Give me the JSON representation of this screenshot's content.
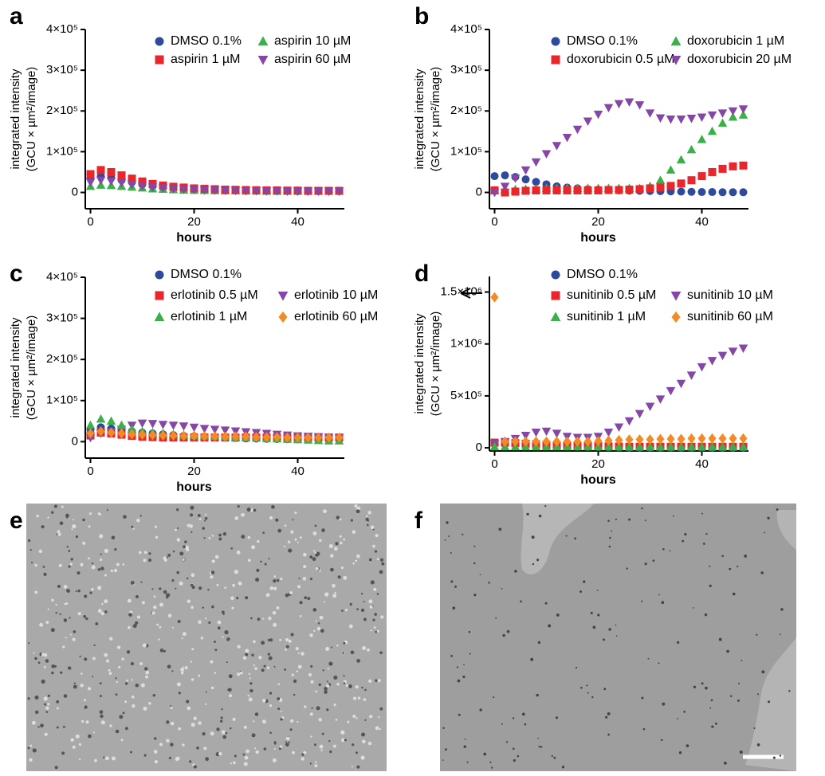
{
  "chart_data": [
    {
      "type": "scatter",
      "panel_label": "a",
      "ylabel": [
        "integrated intensity",
        "(GCU × µm²/image)"
      ],
      "xlabel": "hours",
      "x": [
        0,
        2,
        4,
        6,
        8,
        10,
        12,
        14,
        16,
        18,
        20,
        22,
        24,
        26,
        28,
        30,
        32,
        34,
        36,
        38,
        40,
        42,
        44,
        46,
        48
      ],
      "xlim": [
        -1,
        49
      ],
      "xticks": [
        0,
        20,
        40
      ],
      "ylim": [
        -40000,
        400000
      ],
      "yticks": [
        0,
        {
          "value": 100000,
          "label": "1×10⁵"
        },
        {
          "value": 200000,
          "label": "2×10⁵"
        },
        {
          "value": 300000,
          "label": "3×10⁵"
        },
        {
          "value": 400000,
          "label": "4×10⁵"
        }
      ],
      "series": [
        {
          "name": "DMSO 0.1%",
          "color": "#2e4b9b",
          "marker": "circle",
          "values": [
            35000,
            40000,
            36000,
            30000,
            25000,
            20000,
            16000,
            13000,
            11000,
            9000,
            8000,
            7000,
            6000,
            5500,
            5000,
            4500,
            4000,
            4000,
            3500,
            3500,
            3000,
            3000,
            3000,
            3000,
            3000
          ]
        },
        {
          "name": "aspirin 10 µM",
          "color": "#3bb04a",
          "marker": "triangle",
          "values": [
            15000,
            18000,
            17000,
            15000,
            13000,
            11000,
            9000,
            8000,
            7000,
            6000,
            5500,
            5000,
            4500,
            4000,
            4000,
            3500,
            3500,
            3000,
            3000,
            3000,
            3000,
            3000,
            3000,
            3000,
            3000
          ]
        },
        {
          "name": "aspirin 1 µM",
          "color": "#e8262b",
          "marker": "square",
          "values": [
            45000,
            55000,
            50000,
            42000,
            34000,
            27000,
            21000,
            17000,
            14000,
            12000,
            10000,
            9000,
            8000,
            7000,
            6500,
            6000,
            5500,
            5000,
            5000,
            4500,
            4500,
            4000,
            4000,
            4000,
            4000
          ]
        },
        {
          "name": "aspirin 60 µM",
          "color": "#8447a6",
          "marker": "triangle-down",
          "values": [
            25000,
            30000,
            28000,
            24000,
            20000,
            16000,
            13000,
            11000,
            9000,
            8000,
            7000,
            6000,
            5500,
            5000,
            4500,
            4000,
            4000,
            3500,
            3500,
            3000,
            3000,
            3000,
            3000,
            3000,
            3000
          ]
        }
      ]
    },
    {
      "type": "scatter",
      "panel_label": "b",
      "ylabel": [
        "integrated intensity",
        "(GCU × µm²/image)"
      ],
      "xlabel": "hours",
      "x": [
        0,
        2,
        4,
        6,
        8,
        10,
        12,
        14,
        16,
        18,
        20,
        22,
        24,
        26,
        28,
        30,
        32,
        34,
        36,
        38,
        40,
        42,
        44,
        46,
        48
      ],
      "xlim": [
        -1,
        49
      ],
      "xticks": [
        0,
        20,
        40
      ],
      "ylim": [
        -40000,
        400000
      ],
      "yticks": [
        0,
        {
          "value": 100000,
          "label": "1×10⁵"
        },
        {
          "value": 200000,
          "label": "2×10⁵"
        },
        {
          "value": 300000,
          "label": "3×10⁵"
        },
        {
          "value": 400000,
          "label": "4×10⁵"
        }
      ],
      "series": [
        {
          "name": "DMSO 0.1%",
          "color": "#2e4b9b",
          "marker": "circle",
          "values": [
            40000,
            42000,
            38000,
            32000,
            26000,
            20000,
            15000,
            12000,
            10000,
            8000,
            7000,
            6000,
            5000,
            4500,
            4000,
            3500,
            3000,
            2500,
            2000,
            1500,
            1000,
            1000,
            500,
            500,
            500
          ]
        },
        {
          "name": "doxorubicin 1 µM",
          "color": "#3bb04a",
          "marker": "triangle",
          "values": [
            5000,
            6000,
            7000,
            8000,
            9000,
            10000,
            10000,
            10000,
            10000,
            10000,
            10000,
            10000,
            10000,
            10000,
            10000,
            15000,
            30000,
            55000,
            80000,
            105000,
            130000,
            150000,
            170000,
            185000,
            190000
          ]
        },
        {
          "name": "doxorubicin 0.5 µM",
          "color": "#e8262b",
          "marker": "square",
          "values": [
            5000,
            0,
            2000,
            4000,
            5000,
            5000,
            5000,
            5000,
            5000,
            5000,
            5000,
            6000,
            6000,
            7000,
            8000,
            10000,
            12000,
            16000,
            22000,
            30000,
            40000,
            50000,
            58000,
            64000,
            66000
          ]
        },
        {
          "name": "doxorubicin 20 µM",
          "color": "#8447a6",
          "marker": "triangle-down",
          "values": [
            0,
            15000,
            35000,
            55000,
            75000,
            95000,
            115000,
            135000,
            155000,
            175000,
            192000,
            208000,
            218000,
            222000,
            215000,
            195000,
            183000,
            180000,
            180000,
            182000,
            185000,
            190000,
            195000,
            200000,
            205000
          ]
        }
      ]
    },
    {
      "type": "scatter",
      "panel_label": "c",
      "ylabel": [
        "integrated intensity",
        "(GCU × µm²/image)"
      ],
      "xlabel": "hours",
      "x": [
        0,
        2,
        4,
        6,
        8,
        10,
        12,
        14,
        16,
        18,
        20,
        22,
        24,
        26,
        28,
        30,
        32,
        34,
        36,
        38,
        40,
        42,
        44,
        46,
        48
      ],
      "xlim": [
        -1,
        49
      ],
      "xticks": [
        0,
        20,
        40
      ],
      "ylim": [
        -40000,
        400000
      ],
      "yticks": [
        0,
        {
          "value": 100000,
          "label": "1×10⁵"
        },
        {
          "value": 200000,
          "label": "2×10⁵"
        },
        {
          "value": 300000,
          "label": "3×10⁵"
        },
        {
          "value": 400000,
          "label": "4×10⁵"
        }
      ],
      "series": [
        {
          "name": "DMSO 0.1%",
          "color": "#2e4b9b",
          "marker": "circle",
          "values": [
            30000,
            35000,
            32000,
            28000,
            25000,
            22000,
            20000,
            18000,
            16000,
            14000,
            13000,
            12000,
            11000,
            10000,
            9000,
            8000,
            7500,
            7000,
            6500,
            6000,
            5500,
            5000,
            5000,
            5000,
            5000
          ]
        },
        {
          "name": "erlotinib 0.5 µM",
          "color": "#e8262b",
          "marker": "square",
          "values": [
            15000,
            22000,
            20000,
            17000,
            14000,
            12000,
            11000,
            10000,
            10000,
            10000,
            10000,
            10000,
            10000,
            10000,
            10000,
            10000,
            10000,
            10000,
            10000,
            10000,
            10000,
            10000,
            10000,
            10000,
            10000
          ]
        },
        {
          "name": "erlotinib 10 µM",
          "color": "#8447a6",
          "marker": "triangle-down",
          "values": [
            10000,
            20000,
            25000,
            30000,
            40000,
            45000,
            44000,
            42000,
            40000,
            38000,
            35000,
            32000,
            30000,
            28000,
            26000,
            24000,
            22000,
            20000,
            18000,
            16000,
            14000,
            13000,
            12000,
            11000,
            10000
          ]
        },
        {
          "name": "erlotinib 1 µM",
          "color": "#3bb04a",
          "marker": "triangle",
          "values": [
            40000,
            55000,
            50000,
            40000,
            30000,
            25000,
            22000,
            20000,
            18000,
            16000,
            15000,
            14000,
            13000,
            12000,
            11000,
            10000,
            9000,
            8000,
            7000,
            6000,
            5000,
            4000,
            3000,
            2000,
            2000
          ]
        },
        {
          "name": "erlotinib 60 µM",
          "color": "#f28a25",
          "marker": "diamond",
          "values": [
            20000,
            25000,
            22000,
            20000,
            18000,
            17000,
            16000,
            15000,
            15000,
            14000,
            14000,
            13000,
            13000,
            12000,
            12000,
            12000,
            11000,
            11000,
            11000,
            10000,
            10000,
            10000,
            10000,
            10000,
            10000
          ]
        }
      ]
    },
    {
      "type": "scatter",
      "panel_label": "d",
      "ylabel": [
        "integrated intensity",
        "(GCU × µm²/image)"
      ],
      "xlabel": "hours",
      "x": [
        0,
        2,
        4,
        6,
        8,
        10,
        12,
        14,
        16,
        18,
        20,
        22,
        24,
        26,
        28,
        30,
        32,
        34,
        36,
        38,
        40,
        42,
        44,
        46,
        48
      ],
      "xlim": [
        -1,
        49
      ],
      "xticks": [
        0,
        20,
        40
      ],
      "ylim": [
        -30000,
        1650000
      ],
      "yticks": [
        0,
        {
          "value": 500000,
          "label": "5×10⁵"
        },
        {
          "value": 1000000,
          "label": "1×10⁶"
        },
        {
          "value": 1500000,
          "label": "1.5×10⁶"
        }
      ],
      "series": [
        {
          "name": "DMSO 0.1%",
          "color": "#2e4b9b",
          "marker": "circle",
          "values": [
            40000,
            40000,
            35000,
            30000,
            25000,
            20000,
            15000,
            12000,
            10000,
            8000,
            6000,
            5000,
            4000,
            3000,
            2000,
            2000,
            2000,
            2000,
            2000,
            2000,
            2000,
            2000,
            2000,
            2000,
            2000
          ]
        },
        {
          "name": "sunitinib 0.5 µM",
          "color": "#e8262b",
          "marker": "square",
          "values": [
            50000,
            50000,
            45000,
            40000,
            35000,
            30000,
            25000,
            22000,
            20000,
            18000,
            16000,
            14000,
            12000,
            10000,
            10000,
            10000,
            10000,
            10000,
            10000,
            10000,
            10000,
            10000,
            10000,
            10000,
            10000
          ]
        },
        {
          "name": "sunitinib 10 µM",
          "color": "#8447a6",
          "marker": "triangle-down",
          "values": [
            40000,
            60000,
            90000,
            120000,
            150000,
            160000,
            140000,
            110000,
            100000,
            100000,
            110000,
            150000,
            200000,
            260000,
            330000,
            400000,
            470000,
            550000,
            620000,
            700000,
            780000,
            840000,
            890000,
            930000,
            960000
          ]
        },
        {
          "name": "sunitinib 1 µM",
          "color": "#3bb04a",
          "marker": "triangle",
          "values": [
            10000,
            10000,
            10000,
            10000,
            10000,
            10000,
            10000,
            10000,
            10000,
            10000,
            10000,
            10000,
            10000,
            10000,
            10000,
            10000,
            10000,
            10000,
            10000,
            10000,
            10000,
            10000,
            10000,
            10000,
            10000
          ]
        },
        {
          "name": "sunitinib 60 µM",
          "color": "#f28a25",
          "marker": "diamond",
          "values": [
            1450000,
            60000,
            60000,
            60000,
            60000,
            60000,
            60000,
            60000,
            60000,
            60000,
            65000,
            70000,
            75000,
            80000,
            80000,
            80000,
            85000,
            85000,
            85000,
            90000,
            90000,
            90000,
            90000,
            90000,
            90000
          ]
        }
      ]
    }
  ],
  "images": [
    {
      "panel_label": "e"
    },
    {
      "panel_label": "f"
    }
  ]
}
